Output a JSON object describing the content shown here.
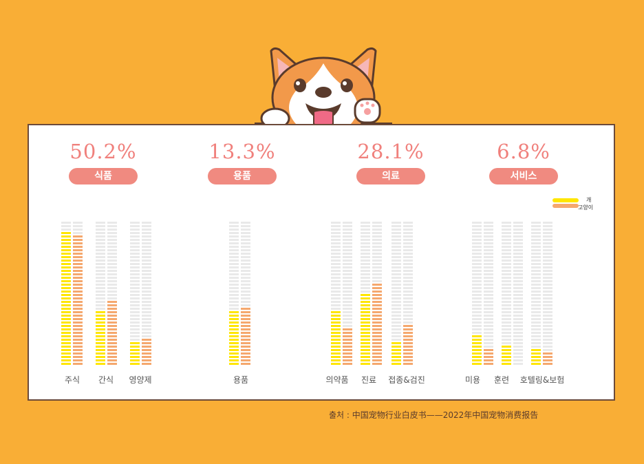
{
  "sections": [
    {
      "percent": "50.2%",
      "label": "식품"
    },
    {
      "percent": "13.3%",
      "label": "용품"
    },
    {
      "percent": "28.1%",
      "label": "의료"
    },
    {
      "percent": "6.8%",
      "label": "서비스"
    }
  ],
  "legend": {
    "dog": "개",
    "cat": "고양이"
  },
  "source": "출처 :  中国宠物行业白皮书——2022年中国宠物消费报告",
  "colors": {
    "background": "#F9AE36",
    "dog": "#FFE600",
    "cat": "#F5A86E",
    "empty": "#E9E9E9",
    "accent": "#F08A80"
  },
  "chart_data": {
    "type": "bar",
    "categories": [
      "주식",
      "간식",
      "영양제",
      "용품",
      "의약품",
      "진료",
      "접종&검진",
      "미용",
      "훈련",
      "호텔링&보험"
    ],
    "series": [
      {
        "name": "개",
        "values": [
          94,
          39,
          17,
          38,
          37,
          50,
          16,
          22,
          14,
          11
        ]
      },
      {
        "name": "고양이",
        "values": [
          90,
          45,
          19,
          41,
          25,
          56,
          28,
          11,
          0,
          10
        ]
      }
    ],
    "ylim": [
      0,
      100
    ],
    "grid": false,
    "legend_position": "top-right"
  }
}
